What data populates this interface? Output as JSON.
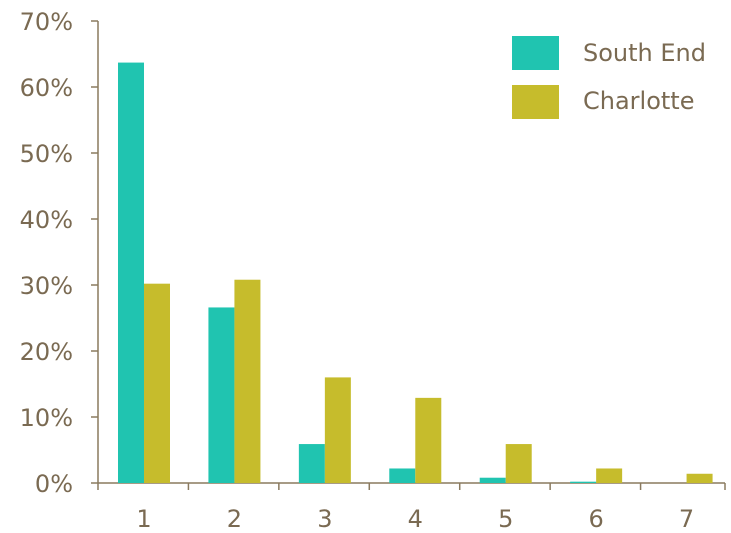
{
  "chart_data": {
    "type": "bar",
    "categories": [
      "1",
      "2",
      "3",
      "4",
      "5",
      "6",
      "7"
    ],
    "series": [
      {
        "name": "South End",
        "values": [
          63.7,
          26.6,
          5.9,
          2.2,
          0.8,
          0.2,
          0.0
        ],
        "color": "#20C4B0"
      },
      {
        "name": "Charlotte",
        "values": [
          30.2,
          30.8,
          16.0,
          12.9,
          5.9,
          2.2,
          1.4
        ],
        "color": "#C6BC2C"
      }
    ],
    "y_ticks": [
      "0%",
      "10%",
      "20%",
      "30%",
      "40%",
      "50%",
      "60%",
      "70%"
    ],
    "ylim": [
      0,
      70
    ],
    "legend_position": "top-right",
    "grid": false
  },
  "colors": {
    "axis": "#8A7A5F",
    "text": "#7A6A52"
  }
}
